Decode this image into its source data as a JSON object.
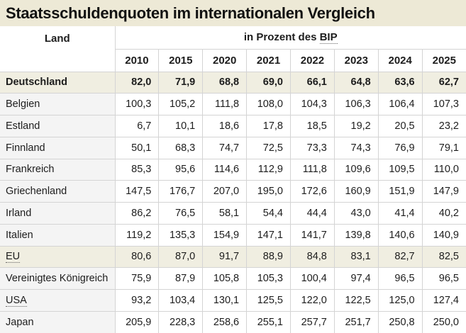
{
  "title": "Staatsschuldenquoten im internationalen Vergleich",
  "table_header": {
    "land_label": "Land",
    "unit_label_prefix": "in Prozent des",
    "unit_abbr": "BIP"
  },
  "chart_data": {
    "type": "table",
    "title": "Staatsschuldenquoten im internationalen Vergleich",
    "unit": "in Prozent des BIP",
    "number_format": "german-decimal-comma, 1 decimal place",
    "years": [
      2010,
      2015,
      2020,
      2021,
      2022,
      2023,
      2024,
      2025
    ],
    "rows": [
      {
        "country": "Deutschland",
        "highlight": true,
        "bold": true,
        "abbr": false,
        "values": [
          82.0,
          71.9,
          68.8,
          69.0,
          66.1,
          64.8,
          63.6,
          62.7
        ]
      },
      {
        "country": "Belgien",
        "highlight": false,
        "bold": false,
        "abbr": false,
        "values": [
          100.3,
          105.2,
          111.8,
          108.0,
          104.3,
          106.3,
          106.4,
          107.3
        ]
      },
      {
        "country": "Estland",
        "highlight": false,
        "bold": false,
        "abbr": false,
        "values": [
          6.7,
          10.1,
          18.6,
          17.8,
          18.5,
          19.2,
          20.5,
          23.2
        ]
      },
      {
        "country": "Finnland",
        "highlight": false,
        "bold": false,
        "abbr": false,
        "values": [
          50.1,
          68.3,
          74.7,
          72.5,
          73.3,
          74.3,
          76.9,
          79.1
        ]
      },
      {
        "country": "Frankreich",
        "highlight": false,
        "bold": false,
        "abbr": false,
        "values": [
          85.3,
          95.6,
          114.6,
          112.9,
          111.8,
          109.6,
          109.5,
          110.0
        ]
      },
      {
        "country": "Griechenland",
        "highlight": false,
        "bold": false,
        "abbr": false,
        "values": [
          147.5,
          176.7,
          207.0,
          195.0,
          172.6,
          160.9,
          151.9,
          147.9
        ]
      },
      {
        "country": "Irland",
        "highlight": false,
        "bold": false,
        "abbr": false,
        "values": [
          86.2,
          76.5,
          58.1,
          54.4,
          44.4,
          43.0,
          41.4,
          40.2
        ]
      },
      {
        "country": "Italien",
        "highlight": false,
        "bold": false,
        "abbr": false,
        "values": [
          119.2,
          135.3,
          154.9,
          147.1,
          141.7,
          139.8,
          140.6,
          140.9
        ]
      },
      {
        "country": "EU",
        "highlight": true,
        "bold": false,
        "abbr": true,
        "values": [
          80.6,
          87.0,
          91.7,
          88.9,
          84.8,
          83.1,
          82.7,
          82.5
        ]
      },
      {
        "country": "Vereinigtes Königreich",
        "highlight": false,
        "bold": false,
        "abbr": false,
        "values": [
          75.9,
          87.9,
          105.8,
          105.3,
          100.4,
          97.4,
          96.5,
          96.5
        ]
      },
      {
        "country": "USA",
        "highlight": false,
        "bold": false,
        "abbr": true,
        "values": [
          93.2,
          103.4,
          130.1,
          125.5,
          122.0,
          122.5,
          125.0,
          127.4
        ]
      },
      {
        "country": "Japan",
        "highlight": false,
        "bold": false,
        "abbr": false,
        "values": [
          205.9,
          228.3,
          258.6,
          255.1,
          257.7,
          251.7,
          250.8,
          250.0
        ]
      }
    ]
  },
  "colors": {
    "title_background": "#EDE9D6",
    "highlight_row_background": "#F0EEE1",
    "land_column_background": "#F4F4F4",
    "cell_background": "#FFFFFF",
    "border": "#D4D4D4",
    "text": "#1D1D1D"
  }
}
